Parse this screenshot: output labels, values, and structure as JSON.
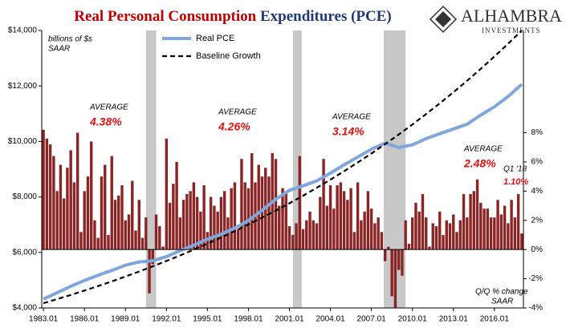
{
  "chart_data": {
    "type": "bar",
    "title_parts": [
      "Real Personal Consumption",
      "Expenditures (PCE)"
    ],
    "logo": {
      "name": "ALHAMBRA",
      "sub": "INVESTMENTS"
    },
    "annotations": [
      "billions of $s",
      "SAAR",
      "Q/Q % change",
      "SAAR"
    ],
    "averages": [
      {
        "label": "AVERAGE",
        "value": "4.38%"
      },
      {
        "label": "AVERAGE",
        "value": "4.26%"
      },
      {
        "label": "AVERAGE",
        "value": "3.14%"
      },
      {
        "label": "AVERAGE",
        "value": "2.48%"
      },
      {
        "label": "Q1 '18",
        "value": "1.10%"
      }
    ],
    "xlim": [
      1982.875,
      2018.125
    ],
    "xticks": [
      {
        "value": 1983,
        "label": "1983.01"
      },
      {
        "value": 1986,
        "label": "1986.01"
      },
      {
        "value": 1989,
        "label": "1989.01"
      },
      {
        "value": 1992,
        "label": "1992.01"
      },
      {
        "value": 1995,
        "label": "1995.01"
      },
      {
        "value": 1998,
        "label": "1998.01"
      },
      {
        "value": 2001,
        "label": "2001.01"
      },
      {
        "value": 2004,
        "label": "2004.01"
      },
      {
        "value": 2007,
        "label": "2007.01"
      },
      {
        "value": 2010,
        "label": "2010.01"
      },
      {
        "value": 2013,
        "label": "2013.01"
      },
      {
        "value": 2016,
        "label": "2016.01"
      }
    ],
    "ylim": [
      4000,
      14000
    ],
    "yticks": [
      {
        "value": 4000,
        "label": "$4,000"
      },
      {
        "value": 6000,
        "label": "$6,000"
      },
      {
        "value": 8000,
        "label": "$8,000"
      },
      {
        "value": 10000,
        "label": "$10,000"
      },
      {
        "value": 12000,
        "label": "$12,000"
      },
      {
        "value": 14000,
        "label": "$14,000"
      }
    ],
    "y2lim": [
      -4,
      15
    ],
    "y2ticks": [
      {
        "value": -4,
        "label": "-4%"
      },
      {
        "value": -2,
        "label": "-2%"
      },
      {
        "value": 0,
        "label": "0%"
      },
      {
        "value": 2,
        "label": "2%"
      },
      {
        "value": 4,
        "label": "4%"
      },
      {
        "value": 6,
        "label": "6%"
      },
      {
        "value": 8,
        "label": "8%"
      }
    ],
    "shaded_ranges": [
      [
        1990.5,
        1991.25
      ],
      [
        2001.25,
        2001.9
      ],
      [
        2007.9,
        2009.5
      ]
    ],
    "shade_color": "#c8c8c8",
    "legend": "top-left",
    "series": [
      {
        "name": "Real PCE",
        "type": "line",
        "color": "#7fa7dc",
        "x": [
          1983,
          1984,
          1985,
          1986,
          1987,
          1988,
          1989,
          1990,
          1991,
          1992,
          1993,
          1994,
          1995,
          1996,
          1997,
          1998,
          1999,
          2000,
          2001,
          2002,
          2003,
          2004,
          2005,
          2006,
          2007,
          2008,
          2009,
          2010,
          2011,
          2012,
          2013,
          2014,
          2015,
          2016,
          2017,
          2018
        ],
        "values": [
          4320,
          4550,
          4780,
          4990,
          5180,
          5350,
          5540,
          5660,
          5700,
          5850,
          6060,
          6260,
          6480,
          6660,
          6880,
          7150,
          7520,
          7920,
          8240,
          8400,
          8580,
          8860,
          9160,
          9440,
          9720,
          9940,
          9780,
          9880,
          10100,
          10280,
          10450,
          10620,
          10950,
          11250,
          11620,
          12060
        ]
      },
      {
        "name": "Baseline Growth",
        "type": "line",
        "dashed": true,
        "color": "#000000",
        "x": [
          1983,
          1984,
          1985,
          1986,
          1987,
          1988,
          1989,
          1990,
          1991,
          1992,
          1993,
          1994,
          1995,
          1996,
          1997,
          1998,
          1999,
          2000,
          2001,
          2002,
          2003,
          2004,
          2005,
          2006,
          2007,
          2008,
          2009,
          2010,
          2011,
          2012,
          2013,
          2014,
          2015,
          2016,
          2017,
          2018
        ],
        "values": [
          4170,
          4317,
          4469,
          4626,
          4789,
          4957,
          5132,
          5313,
          5500,
          5693,
          5894,
          6101,
          6316,
          6538,
          6769,
          7007,
          7254,
          7509,
          7773,
          8047,
          8330,
          8624,
          8927,
          9242,
          9567,
          9904,
          10252,
          10613,
          10987,
          11374,
          11774,
          12189,
          12618,
          13062,
          13522,
          13999
        ]
      },
      {
        "type": "bar",
        "axis": "y2",
        "color": "#8b2525",
        "x": [
          1983,
          1983.25,
          1983.5,
          1983.75,
          1984,
          1984.25,
          1984.5,
          1984.75,
          1985,
          1985.25,
          1985.5,
          1985.75,
          1986,
          1986.25,
          1986.5,
          1986.75,
          1987,
          1987.25,
          1987.5,
          1987.75,
          1988,
          1988.25,
          1988.5,
          1988.75,
          1989,
          1989.25,
          1989.5,
          1989.75,
          1990,
          1990.25,
          1990.5,
          1990.75,
          1991,
          1991.25,
          1991.5,
          1991.75,
          1992,
          1992.25,
          1992.5,
          1992.75,
          1993,
          1993.25,
          1993.5,
          1993.75,
          1994,
          1994.25,
          1994.5,
          1994.75,
          1995,
          1995.25,
          1995.5,
          1995.75,
          1996,
          1996.25,
          1996.5,
          1996.75,
          1997,
          1997.25,
          1997.5,
          1997.75,
          1998,
          1998.25,
          1998.5,
          1998.75,
          1999,
          1999.25,
          1999.5,
          1999.75,
          2000,
          2000.25,
          2000.5,
          2000.75,
          2001,
          2001.25,
          2001.5,
          2001.75,
          2002,
          2002.25,
          2002.5,
          2002.75,
          2003,
          2003.25,
          2003.5,
          2003.75,
          2004,
          2004.25,
          2004.5,
          2004.75,
          2005,
          2005.25,
          2005.5,
          2005.75,
          2006,
          2006.25,
          2006.5,
          2006.75,
          2007,
          2007.25,
          2007.5,
          2007.75,
          2008,
          2008.25,
          2008.5,
          2008.75,
          2009,
          2009.25,
          2009.5,
          2009.75,
          2010,
          2010.25,
          2010.5,
          2010.75,
          2011,
          2011.25,
          2011.5,
          2011.75,
          2012,
          2012.25,
          2012.5,
          2012.75,
          2013,
          2013.25,
          2013.5,
          2013.75,
          2014,
          2014.25,
          2014.5,
          2014.75,
          2015,
          2015.25,
          2015.5,
          2015.75,
          2016,
          2016.25,
          2016.5,
          2016.75,
          2017,
          2017.25,
          2017.5,
          2017.75,
          2018
        ],
        "values": [
          8.2,
          7.6,
          7.2,
          6.4,
          4.0,
          5.8,
          3.5,
          5.6,
          6.8,
          4.6,
          8.0,
          1.2,
          4.0,
          5.0,
          7.4,
          2.0,
          0.8,
          5.0,
          5.8,
          1.0,
          6.4,
          3.4,
          3.7,
          4.4,
          2.0,
          2.4,
          4.7,
          1.3,
          3.4,
          0.8,
          2.2,
          -3.0,
          -1.0,
          2.4,
          1.6,
          0.2,
          7.6,
          3.2,
          4.5,
          6.0,
          2.2,
          3.4,
          3.8,
          4.0,
          4.6,
          3.6,
          2.6,
          4.4,
          1.2,
          3.6,
          3.0,
          2.6,
          3.6,
          4.0,
          2.2,
          4.2,
          4.6,
          1.4,
          6.2,
          4.6,
          4.2,
          6.6,
          4.6,
          5.8,
          5.0,
          5.6,
          5.0,
          6.6,
          6.2,
          3.0,
          4.2,
          4.0,
          1.6,
          1.0,
          1.8,
          6.4,
          1.4,
          2.0,
          2.6,
          2.0,
          1.8,
          3.6,
          6.2,
          3.0,
          4.4,
          2.8,
          4.4,
          4.6,
          4.0,
          3.4,
          4.2,
          1.2,
          4.6,
          2.0,
          2.6,
          4.0,
          2.8,
          1.8,
          2.2,
          1.2,
          -0.8,
          0.2,
          -3.2,
          -4.8,
          -1.4,
          -1.8,
          2.0,
          0.4,
          2.2,
          3.2,
          2.6,
          3.8,
          2.2,
          0.2,
          1.8,
          1.6,
          2.6,
          1.0,
          2.0,
          1.8,
          2.4,
          1.2,
          2.0,
          3.8,
          2.2,
          3.8,
          4.0,
          4.8,
          3.2,
          2.8,
          2.8,
          2.2,
          2.2,
          3.4,
          2.4,
          3.0,
          1.8,
          3.4,
          2.2,
          3.8,
          1.1
        ]
      }
    ]
  }
}
